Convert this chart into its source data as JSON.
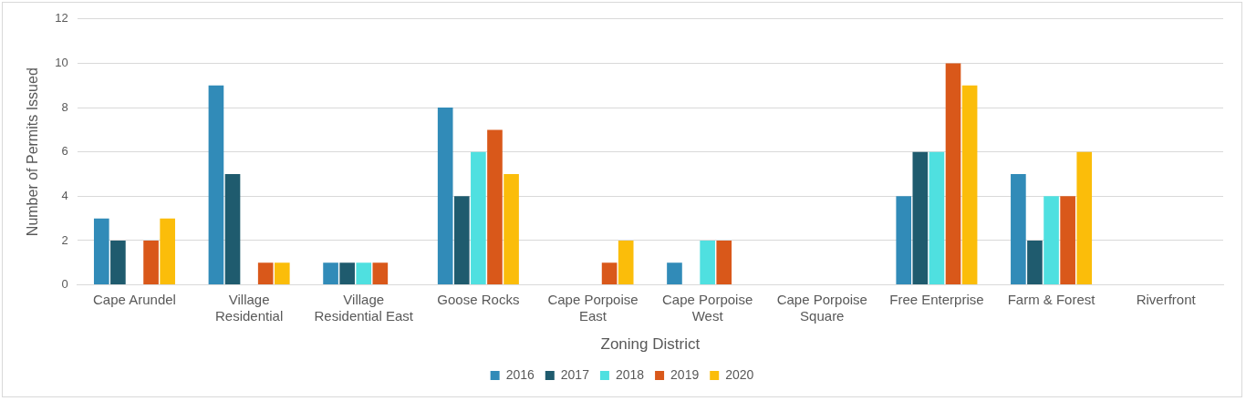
{
  "chart_data": {
    "type": "bar",
    "xlabel": "Zoning District",
    "ylabel": "Number of Permits Issued",
    "categories": [
      "Cape Arundel",
      "Village Residential",
      "Village Residential East",
      "Goose Rocks",
      "Cape Porpoise East",
      "Cape Porpoise West",
      "Cape Porpoise Square",
      "Free Enterprise",
      "Farm & Forest",
      "Riverfront"
    ],
    "series": [
      {
        "name": "2016",
        "color": "#318bb8",
        "values": [
          3,
          9,
          1,
          8,
          0,
          1,
          0,
          4,
          5,
          0
        ]
      },
      {
        "name": "2017",
        "color": "#1f5b6e",
        "values": [
          2,
          5,
          1,
          4,
          0,
          0,
          0,
          6,
          2,
          0
        ]
      },
      {
        "name": "2018",
        "color": "#4fe0e0",
        "values": [
          0,
          0,
          1,
          6,
          0,
          2,
          0,
          6,
          4,
          0
        ]
      },
      {
        "name": "2019",
        "color": "#d9581a",
        "values": [
          2,
          1,
          1,
          7,
          1,
          2,
          0,
          10,
          4,
          0
        ]
      },
      {
        "name": "2020",
        "color": "#fbbd0a",
        "values": [
          3,
          1,
          0,
          5,
          2,
          0,
          0,
          9,
          6,
          0
        ]
      }
    ],
    "ylim": [
      0,
      12
    ],
    "yticks": [
      0,
      2,
      4,
      6,
      8,
      10,
      12
    ],
    "grid": "y",
    "legend": "bottom"
  }
}
